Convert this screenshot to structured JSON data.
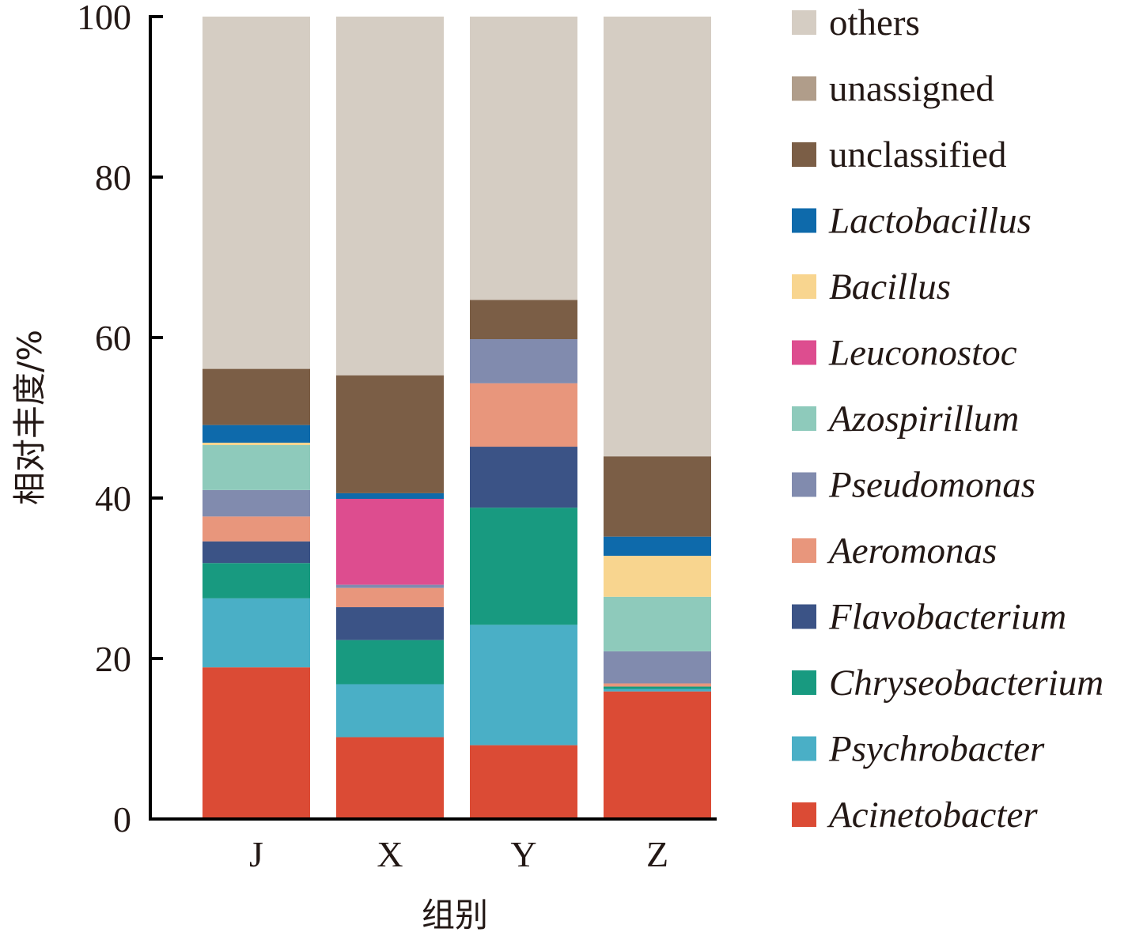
{
  "chart_data": {
    "type": "bar",
    "stacked": true,
    "title": "",
    "xlabel": "组别",
    "ylabel": "相对丰度/%",
    "ylim": [
      0,
      100
    ],
    "yticks": [
      0,
      20,
      40,
      60,
      80,
      100
    ],
    "categories": [
      "J",
      "X",
      "Y",
      "Z"
    ],
    "grid": false,
    "legend_position": "right",
    "series": [
      {
        "name": "Acinetobacter",
        "italic": true,
        "color": "#db4b35",
        "values": [
          18.9,
          10.2,
          9.2,
          15.9
        ]
      },
      {
        "name": "Psychrobacter",
        "italic": true,
        "color": "#4aafc6",
        "values": [
          8.6,
          6.6,
          15.0,
          0.3
        ]
      },
      {
        "name": "Chryseobacterium",
        "italic": true,
        "color": "#189a80",
        "values": [
          4.4,
          5.5,
          14.6,
          0.3
        ]
      },
      {
        "name": "Flavobacterium",
        "italic": true,
        "color": "#3b5386",
        "values": [
          2.7,
          4.1,
          7.6,
          0.0
        ]
      },
      {
        "name": "Aeromonas",
        "italic": true,
        "color": "#e8967c",
        "values": [
          3.1,
          2.4,
          7.9,
          0.4
        ]
      },
      {
        "name": "Pseudomonas",
        "italic": true,
        "color": "#818bae",
        "values": [
          3.3,
          0.4,
          5.5,
          4.0
        ]
      },
      {
        "name": "Azospirillum",
        "italic": true,
        "color": "#8ecabb",
        "values": [
          5.6,
          0.0,
          0.0,
          6.8
        ]
      },
      {
        "name": "Leuconostoc",
        "italic": true,
        "color": "#dd4d8f",
        "values": [
          0.0,
          10.7,
          0.0,
          0.0
        ]
      },
      {
        "name": "Bacillus",
        "italic": true,
        "color": "#f8d58f",
        "values": [
          0.3,
          0.0,
          0.0,
          5.1
        ]
      },
      {
        "name": "Lactobacillus",
        "italic": true,
        "color": "#0e6aab",
        "values": [
          2.2,
          0.7,
          0.0,
          2.4
        ]
      },
      {
        "name": "unclassified",
        "italic": false,
        "color": "#7b5e46",
        "values": [
          7.0,
          14.7,
          4.9,
          10.0
        ]
      },
      {
        "name": "unassigned",
        "italic": false,
        "color": "#b09d8a",
        "values": [
          0.0,
          0.0,
          0.0,
          0.0
        ]
      },
      {
        "name": "others",
        "italic": false,
        "color": "#d5cdc3",
        "values": [
          43.9,
          44.7,
          35.3,
          54.8
        ]
      }
    ],
    "legend_order": [
      "others",
      "unassigned",
      "unclassified",
      "Lactobacillus",
      "Bacillus",
      "Leuconostoc",
      "Azospirillum",
      "Pseudomonas",
      "Aeromonas",
      "Flavobacterium",
      "Chryseobacterium",
      "Psychrobacter",
      "Acinetobacter"
    ]
  }
}
